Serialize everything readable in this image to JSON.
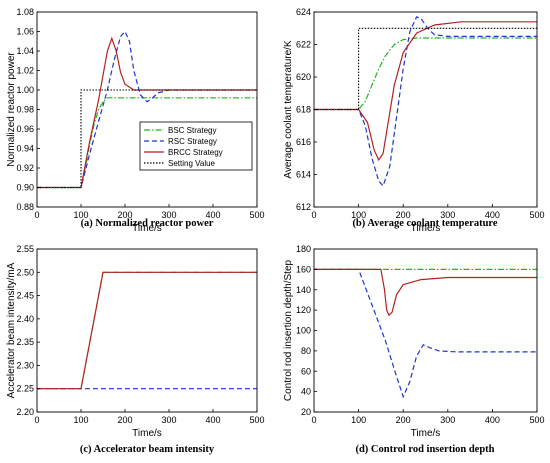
{
  "colors": {
    "bsc": "#22b522",
    "rsc": "#2233cc",
    "brcc": "#b32222",
    "setting": "#000000"
  },
  "legend": {
    "entries": [
      {
        "label": "BSC Strategy",
        "key": "bsc",
        "dash": "6,2,1.5,2"
      },
      {
        "label": "RSC Strategy",
        "key": "rsc",
        "dash": "5,3"
      },
      {
        "label": "BRCC Strategy",
        "key": "brcc",
        "dash": ""
      },
      {
        "label": "Setting Value",
        "key": "setting",
        "dash": "1.5,1.5"
      }
    ]
  },
  "chart_data": [
    {
      "type": "line",
      "caption": "(a) Normalized reactor power",
      "xlabel": "Time/s",
      "ylabel": "Normalized reactor power",
      "xlim": [
        0,
        500
      ],
      "ylim": [
        0.88,
        1.08
      ],
      "xticks": [
        "0",
        "100",
        "200",
        "300",
        "400",
        "500"
      ],
      "yticks": [
        "0.88",
        "0.90",
        "0.92",
        "0.94",
        "0.96",
        "0.98",
        "1.00",
        "1.02",
        "1.04",
        "1.06",
        "1.08"
      ],
      "legend": "bottom-right",
      "series": [
        {
          "key": "bsc",
          "x": [
            0,
            100,
            110,
            120,
            130,
            140,
            150,
            160,
            500
          ],
          "y": [
            0.9,
            0.9,
            0.92,
            0.945,
            0.965,
            0.98,
            0.988,
            0.992,
            0.992
          ]
        },
        {
          "key": "rsc",
          "x": [
            0,
            100,
            120,
            140,
            160,
            175,
            190,
            200,
            210,
            220,
            235,
            250,
            260,
            275,
            300,
            500
          ],
          "y": [
            0.9,
            0.9,
            0.935,
            0.968,
            1.0,
            1.03,
            1.055,
            1.06,
            1.05,
            1.02,
            0.995,
            0.988,
            0.991,
            0.997,
            1.0,
            1.0
          ]
        },
        {
          "key": "brcc",
          "x": [
            0,
            100,
            120,
            140,
            160,
            170,
            180,
            190,
            200,
            220,
            250,
            300,
            500
          ],
          "y": [
            0.9,
            0.9,
            0.948,
            0.99,
            1.04,
            1.053,
            1.04,
            1.018,
            1.006,
            1.0,
            1.0,
            1.0,
            1.0
          ]
        },
        {
          "key": "setting",
          "x": [
            0,
            100,
            100,
            500
          ],
          "y": [
            0.9,
            0.9,
            1.0,
            1.0
          ]
        }
      ]
    },
    {
      "type": "line",
      "caption": "(b) Average coolant temperature",
      "xlabel": "Time/s",
      "ylabel": "Average coolant temperature/K",
      "xlim": [
        0,
        500
      ],
      "ylim": [
        612,
        624
      ],
      "xticks": [
        "0",
        "100",
        "200",
        "300",
        "400",
        "500"
      ],
      "yticks": [
        "612",
        "614",
        "616",
        "618",
        "620",
        "622",
        "624"
      ],
      "series": [
        {
          "key": "bsc",
          "x": [
            0,
            100,
            115,
            130,
            145,
            160,
            180,
            200,
            230,
            500
          ],
          "y": [
            618,
            618,
            618.5,
            619.5,
            620.5,
            621.3,
            622,
            622.3,
            622.4,
            622.4
          ]
        },
        {
          "key": "rsc",
          "x": [
            0,
            100,
            115,
            130,
            145,
            155,
            170,
            185,
            200,
            215,
            230,
            240,
            255,
            270,
            300,
            500
          ],
          "y": [
            618,
            618,
            617,
            615,
            613.6,
            613.3,
            614.5,
            617.5,
            620.5,
            622.8,
            623.7,
            623.6,
            623,
            622.6,
            622.5,
            622.5
          ]
        },
        {
          "key": "brcc",
          "x": [
            0,
            100,
            120,
            135,
            145,
            155,
            165,
            180,
            200,
            230,
            270,
            330,
            500
          ],
          "y": [
            618,
            618,
            617.2,
            615.5,
            614.9,
            615.3,
            617,
            619.5,
            621.5,
            622.7,
            623.2,
            623.4,
            623.4
          ]
        },
        {
          "key": "setting",
          "x": [
            0,
            100,
            100,
            500
          ],
          "y": [
            618,
            618,
            623,
            623
          ]
        }
      ]
    },
    {
      "type": "line",
      "caption": "(c) Accelerator beam intensity",
      "xlabel": "Time/s",
      "ylabel": "Accelerator beam intensity/mA",
      "xlim": [
        0,
        500
      ],
      "ylim": [
        2.2,
        2.55
      ],
      "xticks": [
        "0",
        "100",
        "200",
        "300",
        "400",
        "500"
      ],
      "yticks": [
        "2.20",
        "2.25",
        "2.30",
        "2.35",
        "2.40",
        "2.45",
        "2.50",
        "2.55"
      ],
      "series": [
        {
          "key": "bsc",
          "x": [
            0,
            100,
            150,
            500
          ],
          "y": [
            2.25,
            2.25,
            2.5,
            2.5
          ]
        },
        {
          "key": "rsc",
          "x": [
            0,
            500
          ],
          "y": [
            2.25,
            2.25
          ]
        },
        {
          "key": "brcc",
          "x": [
            0,
            100,
            150,
            500
          ],
          "y": [
            2.25,
            2.25,
            2.5,
            2.5
          ]
        }
      ]
    },
    {
      "type": "line",
      "caption": "(d) Control rod insertion depth",
      "xlabel": "Time/s",
      "ylabel": "Control rod insertion depth/Step",
      "xlim": [
        0,
        500
      ],
      "ylim": [
        20,
        180
      ],
      "xticks": [
        "0",
        "100",
        "200",
        "300",
        "400",
        "500"
      ],
      "yticks": [
        "20",
        "40",
        "60",
        "80",
        "100",
        "120",
        "140",
        "160",
        "180"
      ],
      "series": [
        {
          "key": "bsc",
          "x": [
            0,
            500
          ],
          "y": [
            160,
            160
          ]
        },
        {
          "key": "rsc",
          "x": [
            0,
            100,
            130,
            160,
            185,
            200,
            215,
            230,
            245,
            260,
            280,
            320,
            500
          ],
          "y": [
            160,
            160,
            125,
            90,
            55,
            35,
            50,
            75,
            86,
            83,
            80,
            79,
            79
          ]
        },
        {
          "key": "brcc",
          "x": [
            0,
            150,
            158,
            163,
            168,
            175,
            185,
            200,
            240,
            300,
            500
          ],
          "y": [
            160,
            160,
            140,
            120,
            115,
            118,
            135,
            145,
            150,
            152,
            152
          ]
        }
      ]
    }
  ]
}
